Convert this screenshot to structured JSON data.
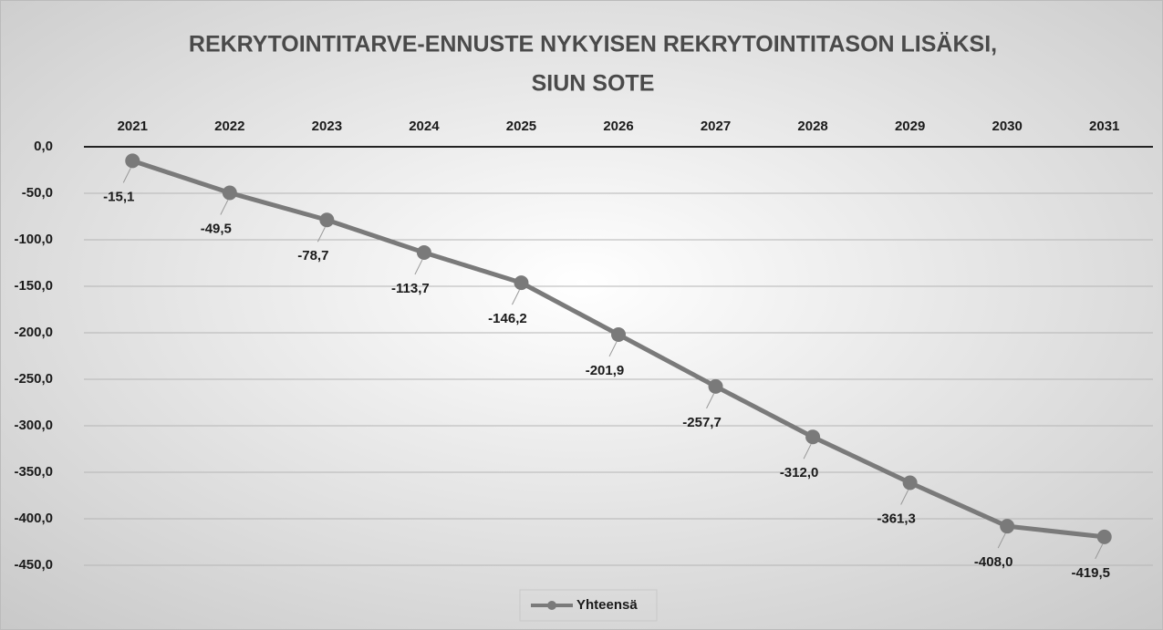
{
  "chart_data": {
    "type": "line",
    "title": [
      "REKRYTOINTITARVE-ENNUSTE NYKYISEN REKRYTOINTITASON LISÄKSI,",
      "SIUN SOTE"
    ],
    "categories": [
      "2021",
      "2022",
      "2023",
      "2024",
      "2025",
      "2026",
      "2027",
      "2028",
      "2029",
      "2030",
      "2031"
    ],
    "series": [
      {
        "name": "Yhteensä",
        "color": "#7a7a7a",
        "values": [
          -15.1,
          -49.5,
          -78.7,
          -113.7,
          -146.2,
          -201.9,
          -257.7,
          -312.0,
          -361.3,
          -408.0,
          -419.5
        ],
        "value_labels": [
          "-15,1",
          "-49,5",
          "-78,7",
          "-113,7",
          "-146,2",
          "-201,9",
          "-257,7",
          "-312,0",
          "-361,3",
          "-408,0",
          "-419,5"
        ]
      }
    ],
    "ylim": [
      -450,
      0
    ],
    "yticks": [
      {
        "value": 0,
        "label": "0,0"
      },
      {
        "value": -50,
        "label": "-50,0"
      },
      {
        "value": -100,
        "label": "-100,0"
      },
      {
        "value": -150,
        "label": "-150,0"
      },
      {
        "value": -200,
        "label": "-200,0"
      },
      {
        "value": -250,
        "label": "-250,0"
      },
      {
        "value": -300,
        "label": "-300,0"
      },
      {
        "value": -350,
        "label": "-350,0"
      },
      {
        "value": -400,
        "label": "-400,0"
      },
      {
        "value": -450,
        "label": "-450,0"
      }
    ],
    "grid": true,
    "legend": "bottom"
  }
}
